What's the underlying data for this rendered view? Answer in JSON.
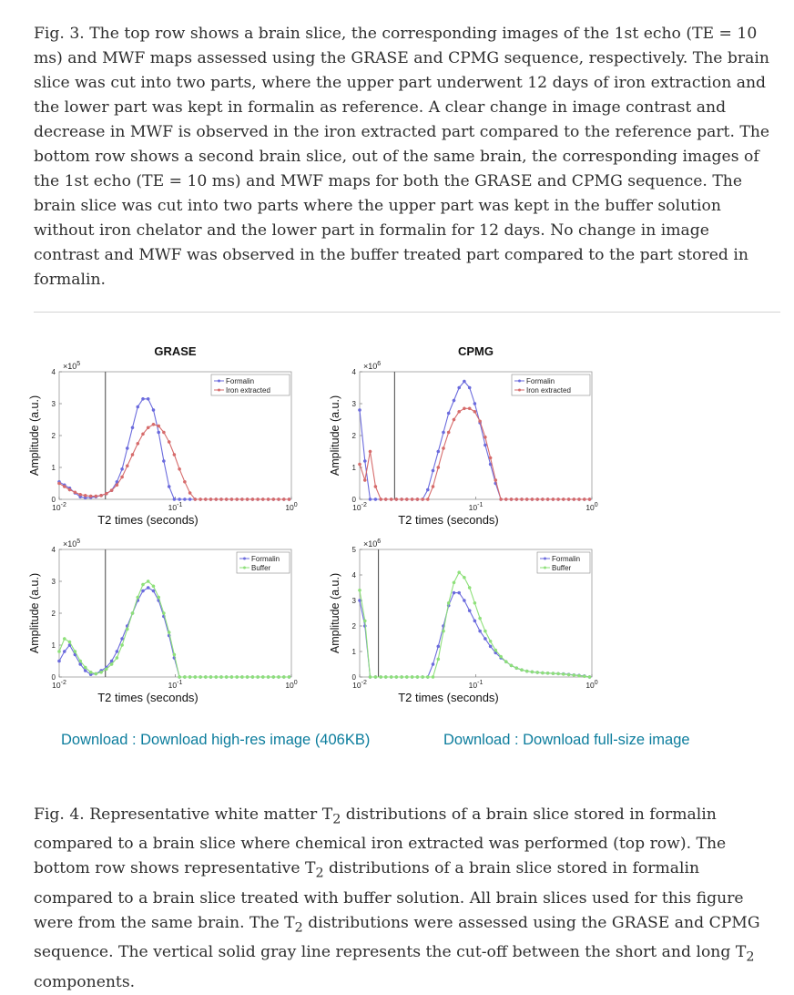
{
  "caption_fig3": "Fig. 3. The top row shows a brain slice, the corresponding images of the 1st echo (TE = 10 ms) and MWF maps assessed using the GRASE and CPMG sequence, respectively. The brain slice was cut into two parts, where the upper part underwent 12 days of iron extraction and the lower part was kept in formalin as reference. A clear change in image contrast and decrease in MWF is observed in the iron extracted part compared to the reference part. The bottom row shows a second brain slice, out of the same brain, the corresponding images of the 1st echo (TE = 10 ms) and MWF maps for both the GRASE and CPMG sequence. The brain slice was cut into two parts where the upper part was kept in the buffer solution without iron chelator and the lower part in formalin for 12 days. No change in image contrast and MWF was observed in the buffer treated part compared to the part stored in formalin.",
  "caption_fig4": {
    "part1": "Fig. 4. Representative white matter T",
    "sub1": "2",
    "part2": " distributions of a brain slice stored in formalin compared to a brain slice where chemical iron extracted was performed (top row). The bottom row shows representative T",
    "sub2": "2",
    "part3": " distributions of a brain slice stored in formalin compared to a brain slice treated with buffer solution. All brain slices used for this figure were from the same brain. The T",
    "sub3": "2",
    "part4": " distributions were assessed using the GRASE and CPMG sequence. The vertical solid gray line represents the cut-off between the short and long T",
    "sub4": "2",
    "part5": " components."
  },
  "downloads": {
    "left": "Download : Download high-res image (406KB)",
    "right": "Download : Download full-size image"
  },
  "colors": {
    "formalin": "#6b6bdd",
    "iron": "#d66b6b",
    "buffer": "#8ee07a",
    "cutoff": "#555555"
  },
  "chart_data": [
    {
      "type": "line",
      "title": "GRASE",
      "xlabel": "T2 times (seconds)",
      "ylabel": "Amplitude (a.u.)",
      "log_x": true,
      "xlim": [
        0.01,
        1
      ],
      "ylim": [
        0,
        400000
      ],
      "y_multiplier": "×10^5",
      "yticks": [
        "0",
        "1",
        "2",
        "3",
        "4"
      ],
      "xticks": [
        "10^-2",
        "10^-1",
        "10^0"
      ],
      "cutoff": 0.025,
      "legend": [
        "Formalin",
        "Iron extracted"
      ],
      "series": [
        {
          "name": "Formalin",
          "color": "formalin",
          "x": [
            0.01,
            0.0111,
            0.0123,
            0.0137,
            0.0152,
            0.0168,
            0.0187,
            0.0207,
            0.023,
            0.0255,
            0.0283,
            0.0314,
            0.0348,
            0.0386,
            0.0428,
            0.0475,
            0.0527,
            0.0584,
            0.0648,
            0.0719,
            0.0797,
            0.0884,
            0.098,
            0.1087,
            0.1206,
            0.1337,
            0.1483,
            0.1645,
            0.1824,
            0.2023,
            0.2244,
            0.2489,
            0.276,
            0.3061,
            0.3395,
            0.3765,
            0.4176,
            0.4632,
            0.5137,
            0.5697,
            0.6318,
            0.7007,
            0.7772,
            0.8619,
            0.9559
          ],
          "y": [
            55000,
            45000,
            35000,
            20000,
            8000,
            5000,
            6000,
            8000,
            12000,
            18000,
            28000,
            55000,
            95000,
            160000,
            225000,
            290000,
            315000,
            315000,
            280000,
            210000,
            120000,
            40000,
            0,
            0,
            0,
            0,
            0,
            0,
            0,
            0,
            0,
            0,
            0,
            0,
            0,
            0,
            0,
            0,
            0,
            0,
            0,
            0,
            0,
            0,
            0
          ]
        },
        {
          "name": "Iron extracted",
          "color": "iron",
          "x": [
            0.01,
            0.0111,
            0.0123,
            0.0137,
            0.0152,
            0.0168,
            0.0187,
            0.0207,
            0.023,
            0.0255,
            0.0283,
            0.0314,
            0.0348,
            0.0386,
            0.0428,
            0.0475,
            0.0527,
            0.0584,
            0.0648,
            0.0719,
            0.0797,
            0.0884,
            0.098,
            0.1087,
            0.1206,
            0.1337,
            0.1483,
            0.1645,
            0.1824,
            0.2023,
            0.2244,
            0.2489,
            0.276,
            0.3061,
            0.3395,
            0.3765,
            0.4176,
            0.4632,
            0.5137,
            0.5697,
            0.6318,
            0.7007,
            0.7772,
            0.8619,
            0.9559
          ],
          "y": [
            50000,
            40000,
            30000,
            22000,
            15000,
            12000,
            10000,
            10000,
            12000,
            18000,
            28000,
            45000,
            70000,
            105000,
            140000,
            175000,
            205000,
            225000,
            235000,
            230000,
            210000,
            180000,
            140000,
            95000,
            55000,
            20000,
            0,
            0,
            0,
            0,
            0,
            0,
            0,
            0,
            0,
            0,
            0,
            0,
            0,
            0,
            0,
            0,
            0,
            0,
            0
          ]
        }
      ]
    },
    {
      "type": "line",
      "title": "CPMG",
      "xlabel": "T2 times (seconds)",
      "ylabel": "Amplitude (a.u.)",
      "log_x": true,
      "xlim": [
        0.01,
        1
      ],
      "ylim": [
        0,
        4000000
      ],
      "y_multiplier": "×10^6",
      "yticks": [
        "0",
        "1",
        "2",
        "3",
        "4"
      ],
      "xticks": [
        "10^-2",
        "10^-1",
        "10^0"
      ],
      "cutoff": 0.02,
      "legend": [
        "Formalin",
        "Iron extracted"
      ],
      "series": [
        {
          "name": "Formalin",
          "color": "formalin",
          "x": [
            0.01,
            0.0111,
            0.0123,
            0.0137,
            0.0152,
            0.0168,
            0.0187,
            0.0207,
            0.023,
            0.0255,
            0.0283,
            0.0314,
            0.0348,
            0.0386,
            0.0428,
            0.0475,
            0.0527,
            0.0584,
            0.0648,
            0.0719,
            0.0797,
            0.0884,
            0.098,
            0.1087,
            0.1206,
            0.1337,
            0.1483,
            0.1645,
            0.1824,
            0.2023,
            0.2244,
            0.2489,
            0.276,
            0.3061,
            0.3395,
            0.3765,
            0.4176,
            0.4632,
            0.5137,
            0.5697,
            0.6318,
            0.7007,
            0.7772,
            0.8619,
            0.9559
          ],
          "y": [
            2800000,
            1200000,
            0,
            0,
            0,
            0,
            0,
            0,
            0,
            0,
            0,
            0,
            0,
            300000,
            900000,
            1500000,
            2100000,
            2700000,
            3100000,
            3500000,
            3700000,
            3500000,
            3000000,
            2400000,
            1700000,
            1100000,
            500000,
            0,
            0,
            0,
            0,
            0,
            0,
            0,
            0,
            0,
            0,
            0,
            0,
            0,
            0,
            0,
            0,
            0,
            0
          ]
        },
        {
          "name": "Iron extracted",
          "color": "iron",
          "x": [
            0.01,
            0.0111,
            0.0123,
            0.0137,
            0.0152,
            0.0168,
            0.0187,
            0.0207,
            0.023,
            0.0255,
            0.0283,
            0.0314,
            0.0348,
            0.0386,
            0.0428,
            0.0475,
            0.0527,
            0.0584,
            0.0648,
            0.0719,
            0.0797,
            0.0884,
            0.098,
            0.1087,
            0.1206,
            0.1337,
            0.1483,
            0.1645,
            0.1824,
            0.2023,
            0.2244,
            0.2489,
            0.276,
            0.3061,
            0.3395,
            0.3765,
            0.4176,
            0.4632,
            0.5137,
            0.5697,
            0.6318,
            0.7007,
            0.7772,
            0.8619,
            0.9559
          ],
          "y": [
            1100000,
            600000,
            1500000,
            400000,
            0,
            0,
            0,
            0,
            0,
            0,
            0,
            0,
            0,
            0,
            400000,
            1000000,
            1600000,
            2100000,
            2500000,
            2750000,
            2850000,
            2850000,
            2750000,
            2450000,
            1950000,
            1300000,
            600000,
            0,
            0,
            0,
            0,
            0,
            0,
            0,
            0,
            0,
            0,
            0,
            0,
            0,
            0,
            0,
            0,
            0,
            0
          ]
        }
      ]
    },
    {
      "type": "line",
      "title": "",
      "xlabel": "T2 times (seconds)",
      "ylabel": "Amplitude (a.u.)",
      "log_x": true,
      "xlim": [
        0.01,
        1
      ],
      "ylim": [
        0,
        400000
      ],
      "y_multiplier": "×10^5",
      "yticks": [
        "0",
        "1",
        "2",
        "3",
        "4"
      ],
      "xticks": [
        "10^-2",
        "10^-1",
        "10^0"
      ],
      "cutoff": 0.025,
      "legend": [
        "Formalin",
        "Buffer"
      ],
      "series": [
        {
          "name": "Formalin",
          "color": "formalin",
          "x": [
            0.01,
            0.0111,
            0.0123,
            0.0137,
            0.0152,
            0.0168,
            0.0187,
            0.0207,
            0.023,
            0.0255,
            0.0283,
            0.0314,
            0.0348,
            0.0386,
            0.0428,
            0.0475,
            0.0527,
            0.0584,
            0.0648,
            0.0719,
            0.0797,
            0.0884,
            0.098,
            0.1087,
            0.1206,
            0.1337,
            0.1483,
            0.1645,
            0.1824,
            0.2023,
            0.2244,
            0.2489,
            0.276,
            0.3061,
            0.3395,
            0.3765,
            0.4176,
            0.4632,
            0.5137,
            0.5697,
            0.6318,
            0.7007,
            0.7772,
            0.8619,
            0.9559
          ],
          "y": [
            50000,
            80000,
            100000,
            70000,
            40000,
            20000,
            8000,
            10000,
            20000,
            30000,
            50000,
            80000,
            120000,
            160000,
            200000,
            240000,
            270000,
            280000,
            270000,
            240000,
            190000,
            130000,
            60000,
            0,
            0,
            0,
            0,
            0,
            0,
            0,
            0,
            0,
            0,
            0,
            0,
            0,
            0,
            0,
            0,
            0,
            0,
            0,
            0,
            0,
            0
          ]
        },
        {
          "name": "Buffer",
          "color": "buffer",
          "x": [
            0.01,
            0.0111,
            0.0123,
            0.0137,
            0.0152,
            0.0168,
            0.0187,
            0.0207,
            0.023,
            0.0255,
            0.0283,
            0.0314,
            0.0348,
            0.0386,
            0.0428,
            0.0475,
            0.0527,
            0.0584,
            0.0648,
            0.0719,
            0.0797,
            0.0884,
            0.098,
            0.1087,
            0.1206,
            0.1337,
            0.1483,
            0.1645,
            0.1824,
            0.2023,
            0.2244,
            0.2489,
            0.276,
            0.3061,
            0.3395,
            0.3765,
            0.4176,
            0.4632,
            0.5137,
            0.5697,
            0.6318,
            0.7007,
            0.7772,
            0.8619,
            0.9559
          ],
          "y": [
            80000,
            120000,
            110000,
            80000,
            50000,
            30000,
            15000,
            10000,
            15000,
            25000,
            40000,
            60000,
            100000,
            150000,
            200000,
            250000,
            290000,
            300000,
            285000,
            250000,
            200000,
            140000,
            70000,
            0,
            0,
            0,
            0,
            0,
            0,
            0,
            0,
            0,
            0,
            0,
            0,
            0,
            0,
            0,
            0,
            0,
            0,
            0,
            0,
            0,
            0
          ]
        }
      ]
    },
    {
      "type": "line",
      "title": "",
      "xlabel": "T2 times (seconds)",
      "ylabel": "Amplitude (a.u.)",
      "log_x": true,
      "xlim": [
        0.01,
        1
      ],
      "ylim": [
        0,
        5000000
      ],
      "y_multiplier": "×10^6",
      "yticks": [
        "0",
        "1",
        "2",
        "3",
        "4",
        "5"
      ],
      "xticks": [
        "10^-2",
        "10^-1",
        "10^0"
      ],
      "cutoff": 0.0145,
      "legend": [
        "Formalin",
        "Buffer"
      ],
      "series": [
        {
          "name": "Formalin",
          "color": "formalin",
          "x": [
            0.01,
            0.0111,
            0.0123,
            0.0137,
            0.0152,
            0.0168,
            0.0187,
            0.0207,
            0.023,
            0.0255,
            0.0283,
            0.0314,
            0.0348,
            0.0386,
            0.0428,
            0.0475,
            0.0527,
            0.0584,
            0.0648,
            0.0719,
            0.0797,
            0.0884,
            0.098,
            0.1087,
            0.1206,
            0.1337,
            0.1483,
            0.1645,
            0.1824,
            0.2023,
            0.2244,
            0.2489,
            0.276,
            0.3061,
            0.3395,
            0.3765,
            0.4176,
            0.4632,
            0.5137,
            0.5697,
            0.6318,
            0.7007,
            0.7772,
            0.8619,
            0.9559
          ],
          "y": [
            3000000,
            2000000,
            0,
            0,
            0,
            0,
            0,
            0,
            0,
            0,
            0,
            0,
            0,
            0,
            500000,
            1200000,
            2000000,
            2800000,
            3300000,
            3300000,
            3000000,
            2600000,
            2200000,
            1800000,
            1500000,
            1200000,
            950000,
            750000,
            600000,
            450000,
            350000,
            280000,
            230000,
            200000,
            180000,
            160000,
            150000,
            140000,
            130000,
            120000,
            100000,
            80000,
            60000,
            40000,
            0
          ]
        },
        {
          "name": "Buffer",
          "color": "buffer",
          "x": [
            0.01,
            0.0111,
            0.0123,
            0.0137,
            0.0152,
            0.0168,
            0.0187,
            0.0207,
            0.023,
            0.0255,
            0.0283,
            0.0314,
            0.0348,
            0.0386,
            0.0428,
            0.0475,
            0.0527,
            0.0584,
            0.0648,
            0.0719,
            0.0797,
            0.0884,
            0.098,
            0.1087,
            0.1206,
            0.1337,
            0.1483,
            0.1645,
            0.1824,
            0.2023,
            0.2244,
            0.2489,
            0.276,
            0.3061,
            0.3395,
            0.3765,
            0.4176,
            0.4632,
            0.5137,
            0.5697,
            0.6318,
            0.7007,
            0.7772,
            0.8619,
            0.9559
          ],
          "y": [
            3400000,
            2200000,
            0,
            0,
            0,
            0,
            0,
            0,
            0,
            0,
            0,
            0,
            0,
            0,
            0,
            700000,
            1800000,
            2900000,
            3700000,
            4100000,
            3900000,
            3500000,
            2900000,
            2300000,
            1800000,
            1400000,
            1050000,
            800000,
            600000,
            450000,
            350000,
            280000,
            230000,
            200000,
            180000,
            160000,
            150000,
            140000,
            130000,
            110000,
            90000,
            70000,
            50000,
            30000,
            0
          ]
        }
      ]
    }
  ]
}
